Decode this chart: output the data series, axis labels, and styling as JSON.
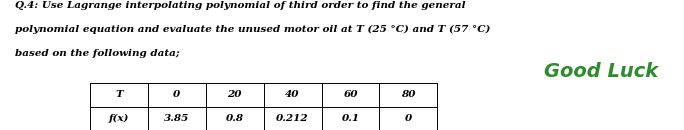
{
  "title_line1": "Q.4: Use Lagrange interpolating polynomial of third order to find the general",
  "title_line2": "polynomial equation and evaluate the unused motor oil at T (25 °C) and T (57 °C)",
  "title_line3": "based on the following data;",
  "table_headers": [
    "T",
    "0",
    "20",
    "40",
    "60",
    "80"
  ],
  "table_row_label": "f(x)",
  "table_values": [
    "3.85",
    "0.8",
    "0.212",
    "0.1",
    "0"
  ],
  "good_luck_text": "Good Luck",
  "bg_color": "#ffffff",
  "text_color": "#000000",
  "good_luck_color": "#2d8c2d",
  "font_size_body": 7.5,
  "font_size_table": 7.5,
  "font_size_goodluck": 14
}
